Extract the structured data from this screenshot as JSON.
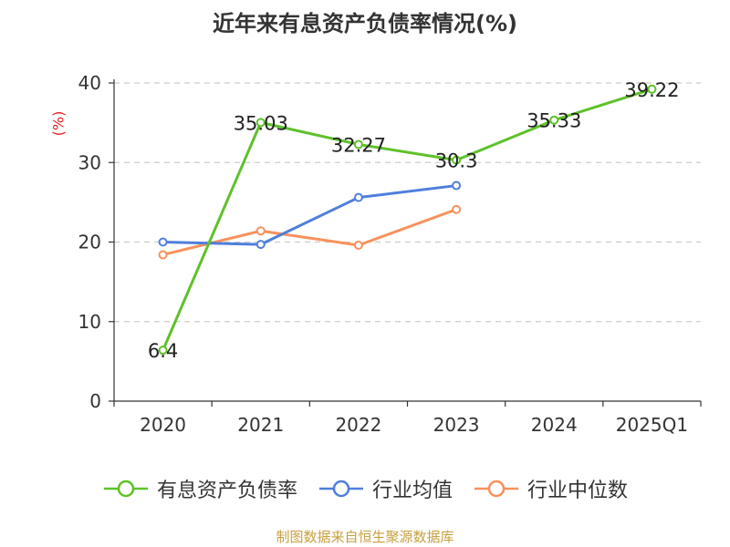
{
  "chart_data": {
    "type": "line",
    "title": "近年来有息资产负债率情况(%)",
    "ylabel": "(%)",
    "categories": [
      "2020",
      "2021",
      "2022",
      "2023",
      "2024",
      "2025Q1"
    ],
    "ylim": [
      0,
      40
    ],
    "yticks": [
      0,
      10,
      20,
      30,
      40
    ],
    "grid": true,
    "legend_position": "bottom",
    "series": [
      {
        "name": "有息资产负债率",
        "color": "#5ec12a",
        "values": [
          6.4,
          35.03,
          32.27,
          30.3,
          35.33,
          39.22
        ],
        "labels": [
          "6.4",
          "35.03",
          "32.27",
          "30.3",
          "35.33",
          "39.22"
        ]
      },
      {
        "name": "行业均值",
        "color": "#4f7fdc",
        "values": [
          20.0,
          19.7,
          25.6,
          27.1,
          null,
          null
        ]
      },
      {
        "name": "行业中位数",
        "color": "#f7915c",
        "values": [
          18.4,
          21.4,
          19.6,
          24.1,
          null,
          null
        ]
      }
    ]
  },
  "source": "制图数据来自恒生聚源数据库",
  "colors": {
    "title": "#333333",
    "unit": "#e02020",
    "source": "#c8a040",
    "grid": "#cccccc",
    "axis": "#333333"
  }
}
